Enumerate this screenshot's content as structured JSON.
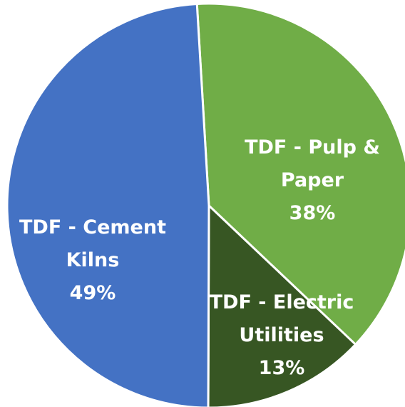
{
  "chart_data": {
    "type": "pie",
    "categories": [
      "TDF - Pulp & Paper",
      "TDF - Electric Utilities",
      "TDF - Cement Kilns"
    ],
    "values": [
      38,
      13,
      49
    ],
    "value_labels": [
      "38%",
      "13%",
      "49%"
    ],
    "colors": [
      "#70ad47",
      "#375623",
      "#4472c4"
    ]
  }
}
